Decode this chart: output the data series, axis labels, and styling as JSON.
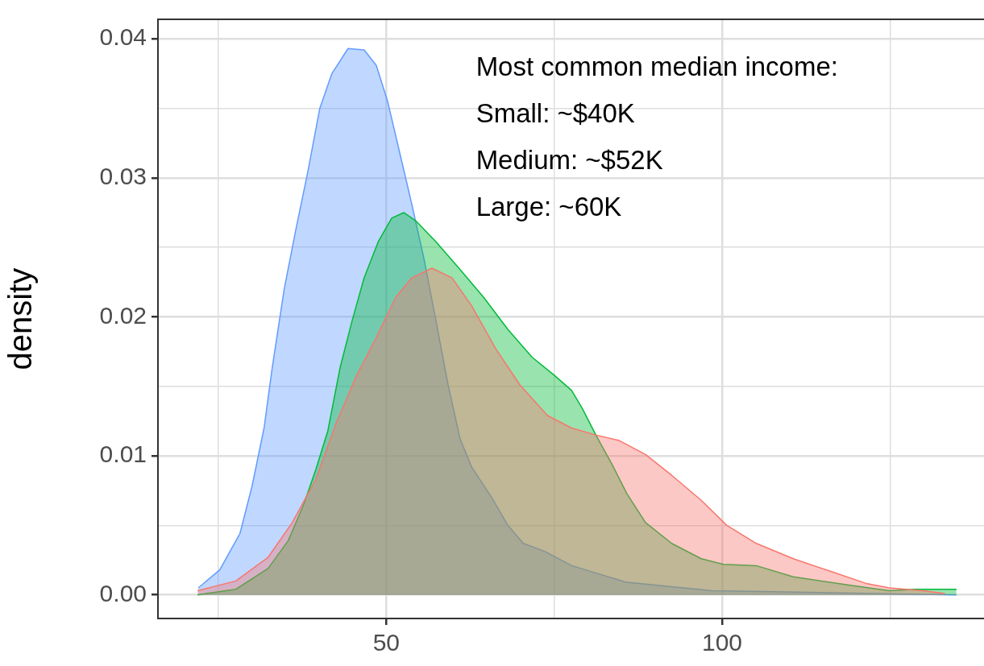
{
  "chart_data": {
    "type": "area",
    "ylabel": "density",
    "annotations": [
      "Most common median income:",
      "Small: ~$40K",
      "Medium: ~$52K",
      "Large: ~60K"
    ],
    "xlim": [
      16,
      139
    ],
    "ylim": [
      -0.0017,
      0.0414
    ],
    "xticks": [
      {
        "value": 25,
        "label": null
      },
      50,
      {
        "value": 75,
        "label": null
      },
      100,
      {
        "value": 125,
        "label": null
      }
    ],
    "yticks": [
      {
        "value": 0,
        "label": "0.00"
      },
      {
        "value": 0.005,
        "label": null
      },
      0.01,
      {
        "value": 0.015,
        "label": null
      },
      0.02,
      {
        "value": 0.025,
        "label": null
      },
      0.03,
      {
        "value": 0.035,
        "label": null
      },
      0.04
    ],
    "grid": true,
    "legend": false,
    "series": [
      {
        "color": "#f8766d",
        "x": [
          21.9,
          27.6,
          32.4,
          36.0,
          39.5,
          42.5,
          45.5,
          48.5,
          51.4,
          53.8,
          56.8,
          59.8,
          62.7,
          66.3,
          69.9,
          74.0,
          77.6,
          81.2,
          84.7,
          88.6,
          92.5,
          96.9,
          100.7,
          105.1,
          110.6,
          116.1,
          121.6,
          124.9,
          129.9,
          133.2
        ],
        "values": [
          0.0003,
          0.001,
          0.0027,
          0.0052,
          0.0083,
          0.0123,
          0.0157,
          0.0185,
          0.0214,
          0.0228,
          0.0235,
          0.0228,
          0.0208,
          0.0177,
          0.0151,
          0.0129,
          0.012,
          0.0115,
          0.0111,
          0.0101,
          0.0086,
          0.0068,
          0.005,
          0.0037,
          0.0026,
          0.0017,
          0.0008,
          0.0005,
          0.0003,
          0.0001
        ]
      },
      {
        "color": "#00ba38",
        "x": [
          21.9,
          27.6,
          32.4,
          35.4,
          37.7,
          39.5,
          41.3,
          43.1,
          44.9,
          46.7,
          48.8,
          50.8,
          52.6,
          54.4,
          57.4,
          61.0,
          64.5,
          68.1,
          71.7,
          75.0,
          77.6,
          79.2,
          81.2,
          83.6,
          85.8,
          88.6,
          92.5,
          96.9,
          100.2,
          105.1,
          110.6,
          118.9,
          124.9,
          128.8,
          134.9
        ],
        "values": [
          0,
          0.0004,
          0.0019,
          0.0039,
          0.0065,
          0.009,
          0.0118,
          0.0163,
          0.0197,
          0.0228,
          0.0254,
          0.0271,
          0.0275,
          0.0269,
          0.0254,
          0.0234,
          0.0214,
          0.0191,
          0.0171,
          0.0158,
          0.0147,
          0.0134,
          0.0115,
          0.0094,
          0.0073,
          0.0052,
          0.0037,
          0.0026,
          0.0022,
          0.0021,
          0.0013,
          0.0007,
          0.0003,
          0.0004,
          0.0004
        ]
      },
      {
        "color": "#619cff",
        "x": [
          22.0,
          25.2,
          28.2,
          30.0,
          31.8,
          33.0,
          34.8,
          36.5,
          38.3,
          40.1,
          41.9,
          44.3,
          46.7,
          48.5,
          50.2,
          52.0,
          53.8,
          55.6,
          57.4,
          59.2,
          61.0,
          62.7,
          65.7,
          68.1,
          70.4,
          73.7,
          77.6,
          85.8,
          98.5,
          134.9
        ],
        "values": [
          0.0005,
          0.0018,
          0.0044,
          0.0078,
          0.012,
          0.0163,
          0.022,
          0.0262,
          0.0304,
          0.035,
          0.0375,
          0.0393,
          0.0392,
          0.0381,
          0.0355,
          0.0318,
          0.0281,
          0.0242,
          0.0197,
          0.0151,
          0.0112,
          0.0092,
          0.007,
          0.005,
          0.0037,
          0.0031,
          0.0021,
          0.0009,
          0.0003,
          0
        ]
      }
    ]
  }
}
